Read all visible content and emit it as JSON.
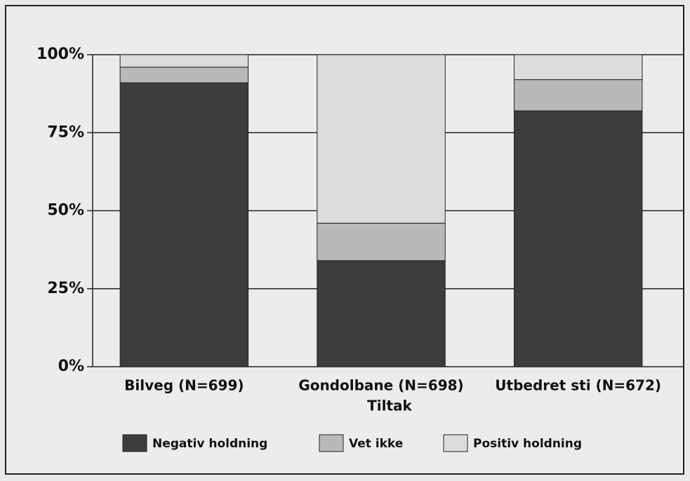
{
  "chart_data": {
    "type": "stacked_bar",
    "x_label": "Tiltak",
    "categories": [
      "Bilveg (N=699)",
      "Gondolbane (N=698)",
      "Utbedret sti (N=672)"
    ],
    "series": [
      {
        "name": "Negativ holdning",
        "color": "#3d3d3d",
        "values": [
          91,
          34,
          82
        ]
      },
      {
        "name": "Vet ikke",
        "color": "#b9b9b9",
        "values": [
          5,
          12,
          10
        ]
      },
      {
        "name": "Positiv holdning",
        "color": "#dcdcdc",
        "values": [
          4,
          54,
          8
        ]
      }
    ],
    "ylim": [
      0,
      100
    ],
    "yticks": [
      {
        "value": 0,
        "label": "0%"
      },
      {
        "value": 25,
        "label": "25%"
      },
      {
        "value": 50,
        "label": "50%"
      },
      {
        "value": 75,
        "label": "75%"
      },
      {
        "value": 100,
        "label": "100%"
      }
    ],
    "grid": true,
    "legend": "bottom"
  }
}
